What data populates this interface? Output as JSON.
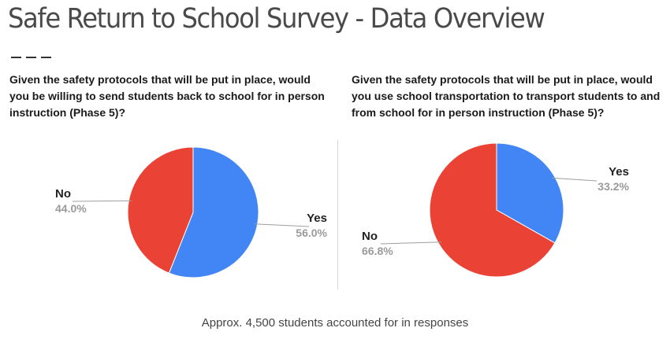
{
  "page": {
    "title": "Safe Return to School Survey - Data Overview",
    "footer": "Approx. 4,500 students accounted for in responses"
  },
  "chart_data": [
    {
      "type": "pie",
      "title": "Given the safety protocols that will be put in place, would you be willing to send students back to school for in person instruction (Phase 5)?",
      "start_angle": 0,
      "slices": [
        {
          "label": "Yes",
          "value": 56.0,
          "display": "56.0%",
          "color": "#4285f4"
        },
        {
          "label": "No",
          "value": 44.0,
          "display": "44.0%",
          "color": "#ea4335"
        }
      ]
    },
    {
      "type": "pie",
      "title": "Given the safety protocols that will be put in place, would you use school transportation to transport students to and from school for in person instruction (Phase 5)?",
      "start_angle": 0,
      "slices": [
        {
          "label": "Yes",
          "value": 33.2,
          "display": "33.2%",
          "color": "#4285f4"
        },
        {
          "label": "No",
          "value": 66.8,
          "display": "66.8%",
          "color": "#ea4335"
        }
      ]
    }
  ]
}
